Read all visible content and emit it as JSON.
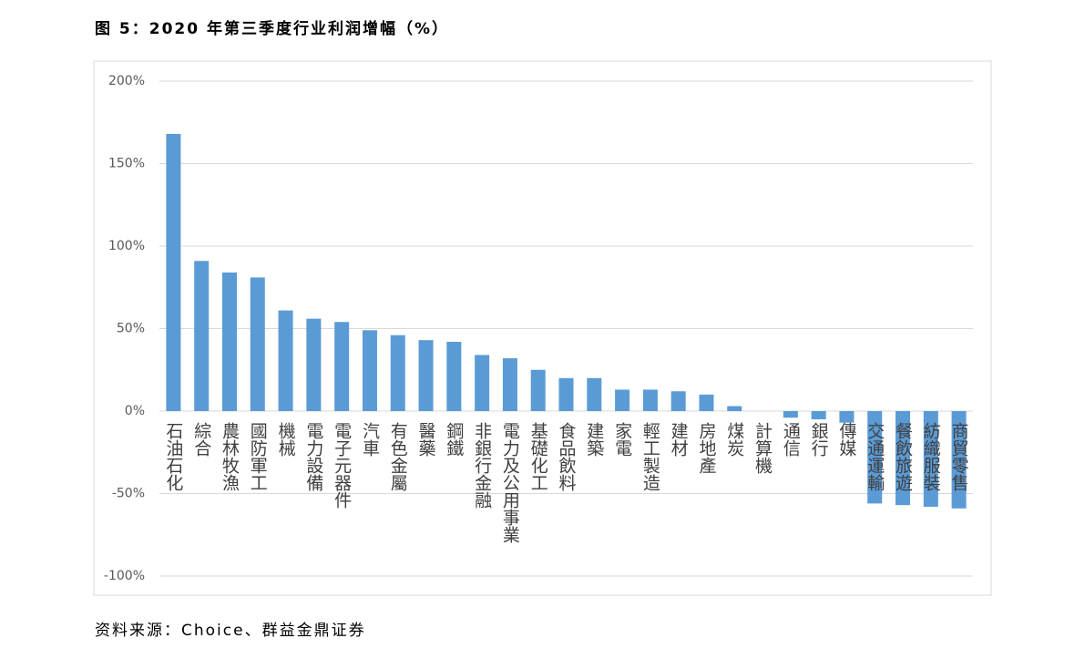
{
  "chart_data": {
    "type": "bar",
    "title": "图 5：2020 年第三季度行业利润增幅（%）",
    "source": "资料来源：Choice、群益金鼎证券",
    "categories": [
      "石油石化",
      "綜合",
      "農林牧漁",
      "國防軍工",
      "機械",
      "電力設備",
      "電子元器件",
      "汽車",
      "有色金屬",
      "醫藥",
      "鋼鐵",
      "非銀行金融",
      "電力及公用事業",
      "基礎化工",
      "食品飲料",
      "建築",
      "家電",
      "輕工製造",
      "建材",
      "房地產",
      "煤炭",
      "計算機",
      "通信",
      "銀行",
      "傳媒",
      "交通運輸",
      "餐飲旅遊",
      "紡織服裝",
      "商貿零售"
    ],
    "values": [
      168,
      91,
      84,
      81,
      61,
      56,
      54,
      49,
      46,
      43,
      42,
      34,
      32,
      25,
      20,
      20,
      13,
      13,
      12,
      10,
      3,
      0,
      -4,
      -5,
      -7,
      -56,
      -57,
      -58,
      -59
    ],
    "color": "#5b9bd5",
    "ylim": [
      -100,
      200
    ],
    "yticks": [
      {
        "value": -100,
        "label": "-100%"
      },
      {
        "value": -50,
        "label": "-50%"
      },
      {
        "value": 0,
        "label": "0%"
      },
      {
        "value": 50,
        "label": "50%"
      },
      {
        "value": 100,
        "label": "100%"
      },
      {
        "value": 150,
        "label": "150%"
      },
      {
        "value": 200,
        "label": "200%"
      }
    ],
    "grid": true
  }
}
